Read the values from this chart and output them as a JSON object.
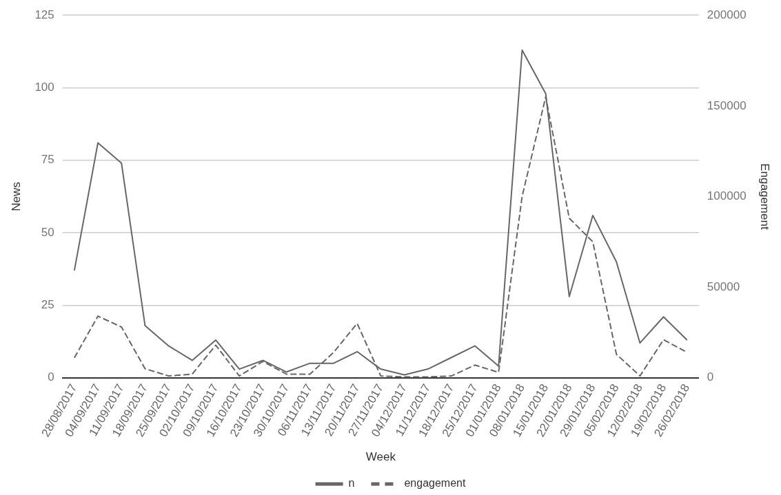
{
  "chart_data": {
    "type": "line",
    "xlabel": "Week",
    "ylabel": "News",
    "y2label": "Engagement",
    "categories": [
      "28/08/2017",
      "04/09/2017",
      "11/09/2017",
      "18/09/2017",
      "25/09/2017",
      "02/10/2017",
      "09/10/2017",
      "16/10/2017",
      "23/10/2017",
      "30/10/2017",
      "06/11/2017",
      "13/11/2017",
      "20/11/2017",
      "27/11/2017",
      "04/12/2017",
      "11/12/2017",
      "18/12/2017",
      "25/12/2017",
      "01/01/2018",
      "08/01/2018",
      "15/01/2018",
      "22/01/2018",
      "29/01/2018",
      "05/02/2018",
      "12/02/2018",
      "19/02/2018",
      "26/02/2018"
    ],
    "series": [
      {
        "name": "n",
        "color": "#666666",
        "line_style": "solid",
        "values": [
          37,
          81,
          74,
          18,
          11,
          6,
          13,
          3,
          6,
          2,
          5,
          5,
          9,
          3,
          1,
          3,
          7,
          11,
          4,
          113,
          98,
          28,
          56,
          40,
          12,
          21,
          13
        ]
      },
      {
        "name": "engagement",
        "color": "#666666",
        "line_style": "dashed",
        "axis": "y2",
        "values": [
          11000,
          34000,
          28000,
          5000,
          1000,
          2000,
          18000,
          1000,
          9000,
          2000,
          2000,
          14000,
          30000,
          1000,
          500,
          500,
          1000,
          7000,
          3000,
          100000,
          155000,
          88000,
          75000,
          13000,
          1000,
          21000,
          14000
        ]
      }
    ],
    "ylim": [
      0,
      125
    ],
    "yticks": [
      0,
      25,
      50,
      75,
      100,
      125
    ],
    "y2lim": [
      0,
      200000
    ],
    "y2ticks": [
      0,
      50000,
      100000,
      150000,
      200000
    ],
    "grid": "y",
    "legend": "bottom",
    "marker": "none"
  }
}
